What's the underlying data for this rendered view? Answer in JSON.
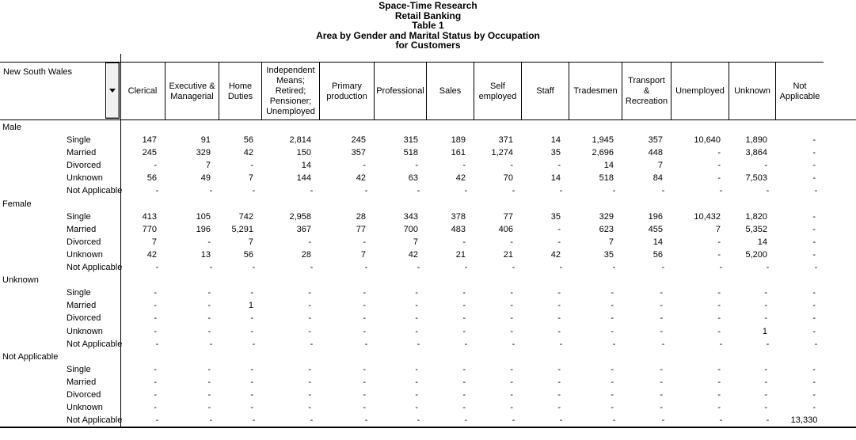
{
  "titles": [
    "Space-Time Research",
    "Retail Banking",
    "Table 1",
    "Area by Gender and Marital Status by Occupation",
    "for Customers"
  ],
  "stub": {
    "selected_area": "New South Wales",
    "dropdown_icon": "triangle-down"
  },
  "columns": [
    "Clerical",
    "Executive & Managerial",
    "Home Duties",
    "Independent Means; Retired; Pensioner; Unemployed",
    "Primary production",
    "Professional",
    "Sales",
    "Self employed",
    "Staff",
    "Tradesmen",
    "Transport & Recreation",
    "Unemployed",
    "Unknown",
    "Not Applicable"
  ],
  "row_groups": [
    {
      "label": "Male",
      "rows": [
        {
          "label": "Single",
          "values": [
            "147",
            "91",
            "56",
            "2,814",
            "245",
            "315",
            "189",
            "371",
            "14",
            "1,945",
            "357",
            "10,640",
            "1,890",
            "-"
          ]
        },
        {
          "label": "Married",
          "values": [
            "245",
            "329",
            "42",
            "150",
            "357",
            "518",
            "161",
            "1,274",
            "35",
            "2,696",
            "448",
            "-",
            "3,864",
            "-"
          ]
        },
        {
          "label": "Divorced",
          "values": [
            "-",
            "7",
            "-",
            "14",
            "-",
            "-",
            "-",
            "-",
            "-",
            "14",
            "7",
            "-",
            "-",
            "-"
          ]
        },
        {
          "label": "Unknown",
          "values": [
            "56",
            "49",
            "7",
            "144",
            "42",
            "63",
            "42",
            "70",
            "14",
            "518",
            "84",
            "-",
            "7,503",
            "-"
          ]
        },
        {
          "label": "Not Applicable",
          "values": [
            "-",
            "-",
            "-",
            "-",
            "-",
            "-",
            "-",
            "-",
            "-",
            "-",
            "-",
            "-",
            "-",
            "-"
          ]
        }
      ]
    },
    {
      "label": "Female",
      "rows": [
        {
          "label": "Single",
          "values": [
            "413",
            "105",
            "742",
            "2,958",
            "28",
            "343",
            "378",
            "77",
            "35",
            "329",
            "196",
            "10,432",
            "1,820",
            "-"
          ]
        },
        {
          "label": "Married",
          "values": [
            "770",
            "196",
            "5,291",
            "367",
            "77",
            "700",
            "483",
            "406",
            "-",
            "623",
            "455",
            "7",
            "5,352",
            "-"
          ]
        },
        {
          "label": "Divorced",
          "values": [
            "7",
            "-",
            "7",
            "-",
            "-",
            "7",
            "-",
            "-",
            "-",
            "7",
            "14",
            "-",
            "14",
            "-"
          ]
        },
        {
          "label": "Unknown",
          "values": [
            "42",
            "13",
            "56",
            "28",
            "7",
            "42",
            "21",
            "21",
            "42",
            "35",
            "56",
            "-",
            "5,200",
            "-"
          ]
        },
        {
          "label": "Not Applicable",
          "values": [
            "-",
            "-",
            "-",
            "-",
            "-",
            "-",
            "-",
            "-",
            "-",
            "-",
            "-",
            "-",
            "-",
            "-"
          ]
        }
      ]
    },
    {
      "label": "Unknown",
      "rows": [
        {
          "label": "Single",
          "values": [
            "-",
            "-",
            "-",
            "-",
            "-",
            "-",
            "-",
            "-",
            "-",
            "-",
            "-",
            "-",
            "-",
            "-"
          ]
        },
        {
          "label": "Married",
          "values": [
            "-",
            "-",
            "1",
            "-",
            "-",
            "-",
            "-",
            "-",
            "-",
            "-",
            "-",
            "-",
            "-",
            "-"
          ]
        },
        {
          "label": "Divorced",
          "values": [
            "-",
            "-",
            "-",
            "-",
            "-",
            "-",
            "-",
            "-",
            "-",
            "-",
            "-",
            "-",
            "-",
            "-"
          ]
        },
        {
          "label": "Unknown",
          "values": [
            "-",
            "-",
            "-",
            "-",
            "-",
            "-",
            "-",
            "-",
            "-",
            "-",
            "-",
            "-",
            "1",
            "-"
          ]
        },
        {
          "label": "Not Applicable",
          "values": [
            "-",
            "-",
            "-",
            "-",
            "-",
            "-",
            "-",
            "-",
            "-",
            "-",
            "-",
            "-",
            "-",
            "-"
          ]
        }
      ]
    },
    {
      "label": "Not Applicable",
      "rows": [
        {
          "label": "Single",
          "values": [
            "-",
            "-",
            "-",
            "-",
            "-",
            "-",
            "-",
            "-",
            "-",
            "-",
            "-",
            "-",
            "-",
            "-"
          ]
        },
        {
          "label": "Married",
          "values": [
            "-",
            "-",
            "-",
            "-",
            "-",
            "-",
            "-",
            "-",
            "-",
            "-",
            "-",
            "-",
            "-",
            "-"
          ]
        },
        {
          "label": "Divorced",
          "values": [
            "-",
            "-",
            "-",
            "-",
            "-",
            "-",
            "-",
            "-",
            "-",
            "-",
            "-",
            "-",
            "-",
            "-"
          ]
        },
        {
          "label": "Unknown",
          "values": [
            "-",
            "-",
            "-",
            "-",
            "-",
            "-",
            "-",
            "-",
            "-",
            "-",
            "-",
            "-",
            "-",
            "-"
          ]
        },
        {
          "label": "Not Applicable",
          "values": [
            "-",
            "-",
            "-",
            "-",
            "-",
            "-",
            "-",
            "-",
            "-",
            "-",
            "-",
            "-",
            "-",
            "13,330"
          ]
        }
      ]
    }
  ],
  "colors": {
    "text": "#000000",
    "background": "#ffffff",
    "grid_lines": "#000000",
    "button_face": "#f0f0f0"
  }
}
